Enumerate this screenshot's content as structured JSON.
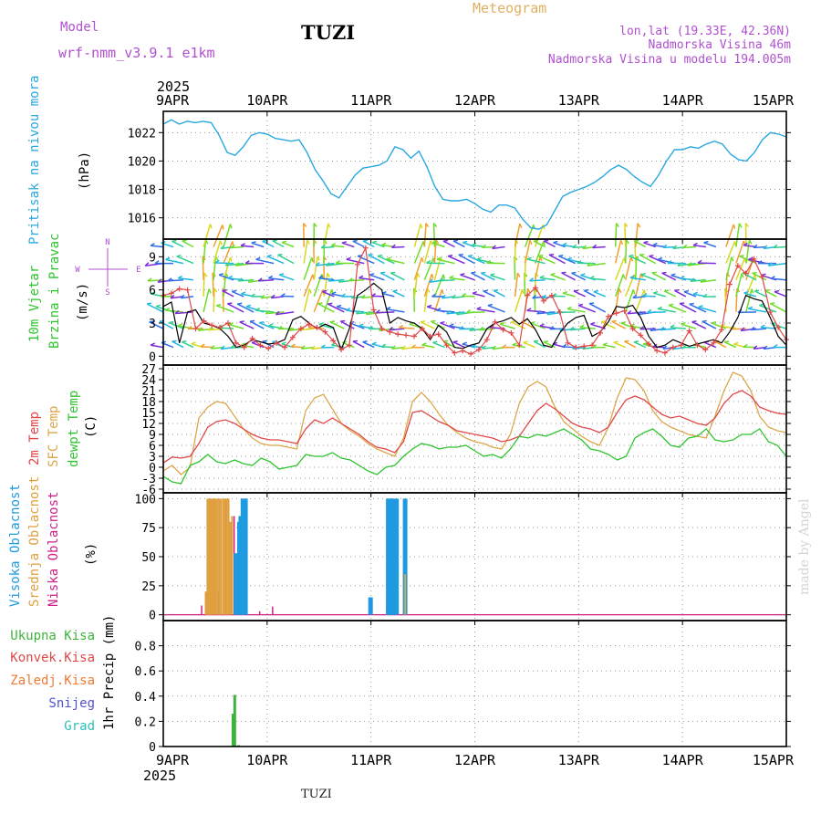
{
  "header": {
    "model_label": "Model",
    "model_name": "wrf-nmm_v3.9.1 e1km",
    "station": "TUZI",
    "meteogram": "Meteogram",
    "lonlat": "lon,lat (19.33E, 42.36N)",
    "elevation": "Nadmorska Visina 46m",
    "elevation_model": "Nadmorska Visina u modelu 194.005m",
    "year_top": "2025",
    "year_bottom": "2025",
    "footer": "TUZI",
    "credit": "made by Angel"
  },
  "colors": {
    "pressure": "#29a8e0",
    "t2m": "#e04848",
    "sfc": "#dca64a",
    "dewpt": "#2fc42f",
    "high": "#1e9be0",
    "mid": "#e0a040",
    "low": "#d02088",
    "total": "#3cb43c",
    "conv": "#e04848",
    "frozen": "#f07a30",
    "snow": "#5050d8",
    "hail": "#30c0b8",
    "legend_purple": "#b050d0",
    "title_orange": "#e0b060"
  },
  "chart_data": [
    {
      "type": "line",
      "panel": "pressure",
      "ylabel_color": "Pritisak na nivou mora",
      "unit": "(hPa)",
      "xticks": [
        "9APR",
        "10APR",
        "11APR",
        "12APR",
        "13APR",
        "14APR",
        "15APR"
      ],
      "ylim": [
        1014.5,
        1023.5
      ],
      "yticks": [
        1016,
        1018,
        1020,
        1022
      ],
      "grid": true,
      "series": [
        {
          "key": "pressure",
          "values": [
            1022.6,
            1022.9,
            1022.6,
            1022.8,
            1022.7,
            1022.8,
            1022.7,
            1021.8,
            1020.6,
            1020.4,
            1021.0,
            1021.8,
            1022.0,
            1021.9,
            1021.6,
            1021.5,
            1021.4,
            1021.5,
            1020.6,
            1019.4,
            1018.6,
            1017.7,
            1017.4,
            1018.2,
            1019.0,
            1019.5,
            1019.6,
            1019.7,
            1020.0,
            1021.0,
            1020.8,
            1020.2,
            1020.7,
            1019.6,
            1018.2,
            1017.3,
            1017.2,
            1017.2,
            1017.3,
            1017.0,
            1016.6,
            1016.4,
            1016.9,
            1016.9,
            1016.7,
            1015.9,
            1015.3,
            1015.2,
            1015.5,
            1016.5,
            1017.5,
            1017.8,
            1018.0,
            1018.2,
            1018.5,
            1018.9,
            1019.4,
            1019.7,
            1019.4,
            1018.9,
            1018.5,
            1018.2,
            1019.0,
            1020.0,
            1020.8,
            1020.8,
            1021.0,
            1020.9,
            1021.2,
            1021.4,
            1021.2,
            1020.5,
            1020.1,
            1020.0,
            1020.6,
            1021.5,
            1022.0,
            1021.9,
            1021.7
          ]
        }
      ]
    },
    {
      "type": "line",
      "panel": "wind",
      "ylabel_color": "10m Vjetar",
      "ylabel_color2": "Brzina i Pravac",
      "unit": "(m/s)",
      "compass": {
        "n": "N",
        "s": "S",
        "w": "W",
        "e": "E"
      },
      "ylim": [
        -0.8,
        10.6
      ],
      "yticks": [
        0,
        3,
        6,
        9
      ],
      "grid": true,
      "series": [
        {
          "key": "speed_mean",
          "values": [
            4.5,
            4.9,
            1.2,
            4.0,
            4.2,
            3.0,
            2.8,
            2.5,
            1.8,
            0.8,
            1.0,
            1.5,
            1.3,
            1.1,
            1.2,
            1.5,
            3.3,
            3.6,
            3.0,
            2.5,
            2.9,
            2.6,
            0.6,
            2.5,
            5.5,
            6.0,
            6.6,
            6.0,
            3.0,
            3.5,
            3.2,
            3.0,
            2.5,
            1.5,
            2.8,
            2.2,
            0.8,
            0.7,
            1.0,
            1.2,
            2.5,
            3.0,
            3.2,
            3.5,
            2.9,
            3.4,
            2.4,
            1.0,
            0.8,
            2.1,
            3.0,
            3.5,
            3.7,
            1.8,
            2.2,
            3.1,
            4.5,
            4.4,
            4.6,
            3.5,
            1.8,
            0.8,
            1.0,
            1.5,
            1.2,
            0.9,
            1.1,
            1.3,
            1.5,
            1.2,
            2.2,
            3.5,
            5.5,
            5.2,
            5.0,
            3.5,
            1.8,
            1.0
          ],
          "color": "#000000"
        },
        {
          "key": "speed_gust",
          "values": [
            5.5,
            5.7,
            6.1,
            6.0,
            2.5,
            3.2,
            2.8,
            2.6,
            3.0,
            1.2,
            0.8,
            1.6,
            1.0,
            0.7,
            1.2,
            0.8,
            1.7,
            2.5,
            2.9,
            2.6,
            2.2,
            1.4,
            0.6,
            1.0,
            8.3,
            9.8,
            4.2,
            2.5,
            2.2,
            2.0,
            1.9,
            1.8,
            2.5,
            1.8,
            2.0,
            1.0,
            0.3,
            0.5,
            0.2,
            0.6,
            1.5,
            3.1,
            2.4,
            2.1,
            1.0,
            5.5,
            6.2,
            5.0,
            5.5,
            4.0,
            1.2,
            0.8,
            0.9,
            1.0,
            2.1,
            3.6,
            3.9,
            4.1,
            2.5,
            1.9,
            1.1,
            0.5,
            0.3,
            0.8,
            1.0,
            2.3,
            1.0,
            0.6,
            1.2,
            2.4,
            6.5,
            8.2,
            7.5,
            8.8,
            7.2,
            4.0,
            2.6,
            1.5
          ],
          "color": "#e04848"
        }
      ]
    },
    {
      "type": "line",
      "panel": "temperature",
      "ylabel_t2m": "2m Temp",
      "ylabel_sfc": "SFC Temp",
      "ylabel_dew": "dewpt Temp",
      "unit": "(C)",
      "ylim": [
        -7,
        28
      ],
      "yticks": [
        -6,
        -3,
        0,
        3,
        6,
        9,
        12,
        15,
        18,
        21,
        24,
        27
      ],
      "grid": true,
      "series": [
        {
          "key": "t2m",
          "values": [
            1.2,
            2.8,
            2.5,
            3.0,
            6.5,
            11.0,
            12.5,
            13.0,
            12.0,
            10.5,
            9.0,
            8.0,
            7.5,
            7.5,
            7.0,
            6.5,
            10.5,
            13.0,
            12.0,
            13.5,
            12.0,
            10.5,
            9.0,
            7.0,
            5.5,
            5.0,
            4.0,
            7.0,
            15.0,
            15.5,
            14.0,
            12.5,
            11.5,
            10.0,
            9.5,
            9.0,
            8.5,
            8.0,
            7.0,
            7.5,
            8.5,
            12.0,
            15.5,
            17.5,
            16.0,
            14.0,
            12.0,
            11.0,
            10.5,
            9.5,
            11.0,
            15.0,
            18.5,
            19.5,
            18.5,
            16.5,
            14.5,
            13.5,
            14.0,
            13.0,
            12.0,
            11.5,
            13.5,
            17.5,
            20.0,
            21.0,
            19.5,
            16.5,
            15.5,
            14.8,
            14.5
          ],
          "color": "#e04848"
        },
        {
          "key": "sfc",
          "values": [
            -1.0,
            0.5,
            -2.0,
            0.0,
            13.5,
            16.5,
            18.0,
            17.5,
            14.0,
            10.5,
            8.0,
            6.5,
            6.0,
            6.0,
            5.5,
            5.0,
            15.5,
            19.0,
            20.0,
            16.0,
            12.0,
            10.0,
            8.5,
            6.5,
            5.0,
            4.0,
            3.0,
            8.0,
            18.0,
            20.5,
            18.0,
            14.5,
            11.5,
            9.5,
            8.0,
            7.0,
            6.5,
            5.5,
            5.0,
            9.0,
            17.5,
            22.0,
            23.5,
            22.0,
            16.5,
            12.5,
            10.5,
            8.5,
            7.0,
            6.0,
            11.0,
            19.0,
            24.5,
            24.0,
            21.0,
            15.5,
            12.5,
            11.0,
            10.0,
            9.0,
            8.5,
            8.0,
            14.0,
            21.0,
            26.0,
            25.0,
            21.0,
            14.0,
            11.0,
            10.0,
            9.5
          ],
          "color": "#dca64a"
        },
        {
          "key": "dewpt",
          "values": [
            -2.5,
            -4.0,
            -4.5,
            0.5,
            1.5,
            3.5,
            1.5,
            1.0,
            2.0,
            1.0,
            0.5,
            2.5,
            1.5,
            -0.5,
            0.0,
            0.5,
            3.5,
            3.0,
            3.0,
            4.0,
            2.5,
            2.0,
            0.5,
            -1.0,
            -2.0,
            0.0,
            0.5,
            3.0,
            5.0,
            6.5,
            6.0,
            5.0,
            5.5,
            5.5,
            6.0,
            4.5,
            3.0,
            3.5,
            2.5,
            5.0,
            8.5,
            8.0,
            9.0,
            8.5,
            9.5,
            10.5,
            9.0,
            7.5,
            5.0,
            4.5,
            3.5,
            2.0,
            3.0,
            8.0,
            9.5,
            10.5,
            8.5,
            6.0,
            5.5,
            8.0,
            8.5,
            10.5,
            7.5,
            7.0,
            7.5,
            9.0,
            9.0,
            10.5,
            7.0,
            6.0,
            3.0
          ],
          "color": "#2fc42f"
        }
      ]
    },
    {
      "type": "bar",
      "panel": "cloud",
      "ylabel_high": "Visoka Oblacnost",
      "ylabel_mid": "Srednja Oblacnost",
      "ylabel_low": "Niska Oblacnost",
      "unit": "(%)",
      "ylim": [
        -5,
        105
      ],
      "yticks": [
        0,
        25,
        50,
        75,
        100
      ],
      "grid": true,
      "bars": [
        {
          "t": 8.4,
          "low": 8
        },
        {
          "t": 9.8,
          "mid": 20
        },
        {
          "t": 10.2,
          "mid": 100,
          "low": 100
        },
        {
          "t": 10.5,
          "mid": 100
        },
        {
          "t": 10.8,
          "mid": 100
        },
        {
          "t": 11.1,
          "mid": 100
        },
        {
          "t": 11.4,
          "mid": 100
        },
        {
          "t": 11.8,
          "mid": 100
        },
        {
          "t": 12.2,
          "mid": 100,
          "low": 20
        },
        {
          "t": 12.6,
          "mid": 100
        },
        {
          "t": 13.0,
          "mid": 100
        },
        {
          "t": 13.4,
          "mid": 100
        },
        {
          "t": 13.9,
          "mid": 100,
          "low": 100
        },
        {
          "t": 14.3,
          "mid": 100
        },
        {
          "t": 14.7,
          "mid": 100
        },
        {
          "t": 15.1,
          "mid": 100
        },
        {
          "t": 15.5,
          "mid": 80
        },
        {
          "t": 15.9,
          "mid": 85,
          "low": 85
        },
        {
          "t": 16.2,
          "low": 20
        },
        {
          "t": 16.8,
          "high": 53
        },
        {
          "t": 17.6,
          "high": 80
        },
        {
          "t": 17.9,
          "high": 85
        },
        {
          "t": 18.2,
          "high": 35
        },
        {
          "t": 18.4,
          "high": 100
        },
        {
          "t": 18.7,
          "high": 100
        },
        {
          "t": 19.0,
          "high": 100
        },
        {
          "t": 21.8,
          "low": 3
        },
        {
          "t": 24.8,
          "low": 7
        },
        {
          "t": 47.9,
          "high": 15
        },
        {
          "t": 51.7,
          "mid": 8
        },
        {
          "t": 52.0,
          "high": 100
        },
        {
          "t": 52.3,
          "high": 100
        },
        {
          "t": 52.6,
          "high": 100,
          "low": 100
        },
        {
          "t": 53.0,
          "high": 100
        },
        {
          "t": 53.4,
          "high": 35
        },
        {
          "t": 53.9,
          "high": 100
        },
        {
          "t": 55.9,
          "high": 100,
          "mid": 35
        }
      ]
    },
    {
      "type": "bar",
      "panel": "precip",
      "legend": {
        "total": "Ukupna Kisa",
        "conv": "Konvek.Kisa",
        "frozen": "Zaledj.Kisa",
        "snow": "Snijeg",
        "hail": "Grad"
      },
      "ylabel": "1hr Precip (mm)",
      "ylim": [
        0,
        1.0
      ],
      "yticks": [
        0,
        0.2,
        0.4,
        0.6,
        0.8
      ],
      "grid": true,
      "bars": [
        {
          "t": 16.1,
          "total": 0.26
        },
        {
          "t": 16.5,
          "total": 0.41
        },
        {
          "t": 17.4,
          "total": 0.01
        }
      ]
    }
  ]
}
